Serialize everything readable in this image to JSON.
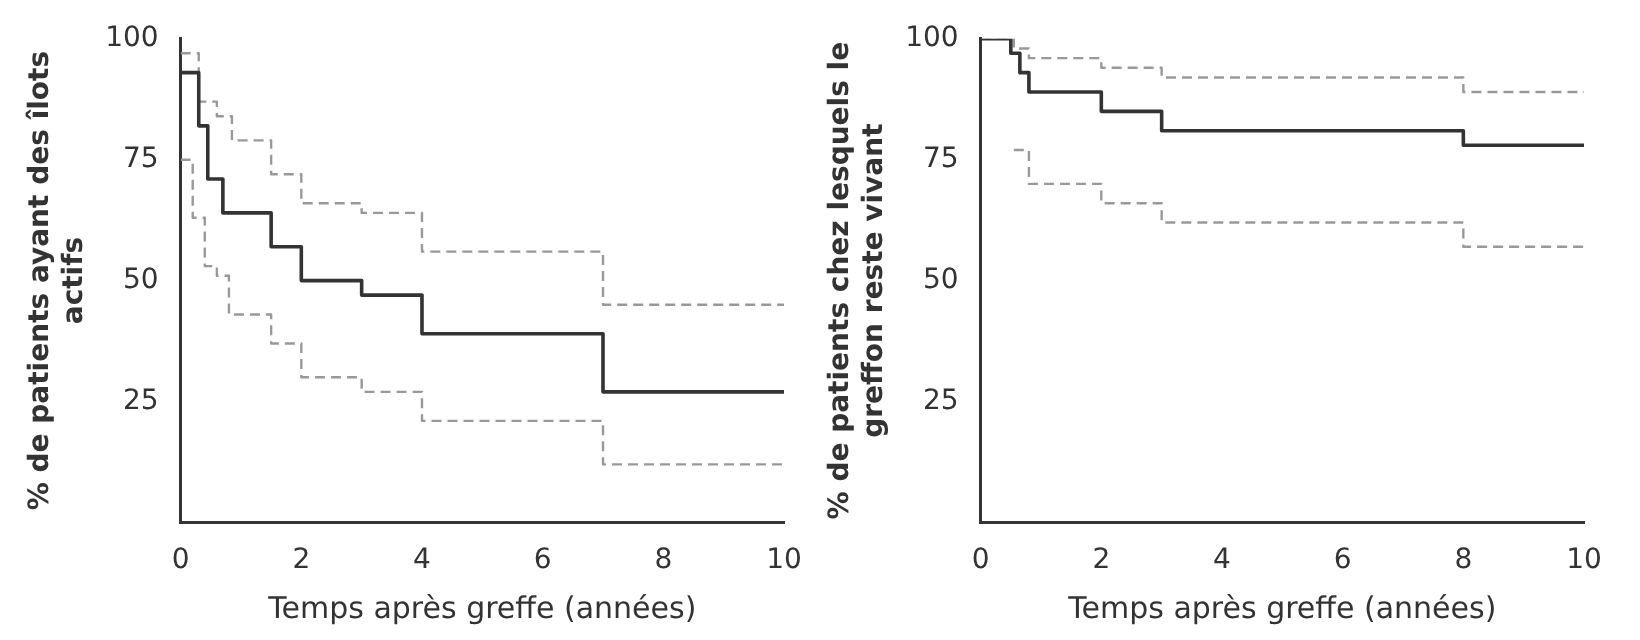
{
  "chart_data": [
    {
      "type": "step",
      "xlabel": "Temps après greffe (années)",
      "ylabel": "% de patients ayant des îlots actifs",
      "xlim": [
        0,
        10
      ],
      "ylim": [
        0,
        100
      ],
      "xticks": [
        0,
        2,
        4,
        6,
        8,
        10
      ],
      "yticks": [
        25,
        50,
        75,
        100
      ],
      "grid": false,
      "legend": false,
      "marker": "none",
      "series": [
        {
          "x": [
            0,
            0.3,
            0.45,
            0.7,
            1.5,
            2,
            3,
            4,
            7,
            10
          ],
          "values": [
            93,
            82,
            71,
            64,
            57,
            50,
            47,
            39,
            27,
            27
          ],
          "color": "#333333",
          "line_style": "solid"
        },
        {
          "x": [
            0,
            0.3,
            0.6,
            0.85,
            1.5,
            2,
            3,
            4,
            7,
            10
          ],
          "values": [
            97,
            87,
            84,
            79,
            72,
            66,
            64,
            56,
            45,
            45
          ],
          "color": "#999999",
          "line_style": "dashed"
        },
        {
          "x": [
            0,
            0.2,
            0.4,
            0.6,
            0.8,
            1.5,
            2,
            3,
            4,
            7,
            10
          ],
          "values": [
            75,
            63,
            53,
            51,
            43,
            37,
            30,
            27,
            21,
            12,
            12
          ],
          "color": "#999999",
          "line_style": "dashed"
        }
      ]
    },
    {
      "type": "step",
      "xlabel": "Temps après greffe (années)",
      "ylabel": "% de patients chez lesquels le greffon reste vivant",
      "xlim": [
        0,
        10
      ],
      "ylim": [
        0,
        100
      ],
      "xticks": [
        0,
        2,
        4,
        6,
        8,
        10
      ],
      "yticks": [
        25,
        50,
        75,
        100
      ],
      "grid": false,
      "legend": false,
      "marker": "none",
      "series": [
        {
          "x": [
            0,
            0.5,
            0.65,
            0.8,
            2,
            3,
            8,
            10
          ],
          "values": [
            100,
            97,
            93,
            89,
            85,
            81,
            78,
            78
          ],
          "color": "#333333",
          "line_style": "solid"
        },
        {
          "x": [
            0,
            0.55,
            0.8,
            2,
            3,
            8,
            10
          ],
          "values": [
            100,
            98,
            96,
            94,
            92,
            89,
            89
          ],
          "color": "#999999",
          "line_style": "dashed"
        },
        {
          "x": [
            0.55,
            0.8,
            2,
            3,
            8,
            10
          ],
          "values": [
            77,
            70,
            66,
            62,
            57,
            57
          ],
          "color": "#999999",
          "line_style": "dashed"
        }
      ]
    }
  ]
}
